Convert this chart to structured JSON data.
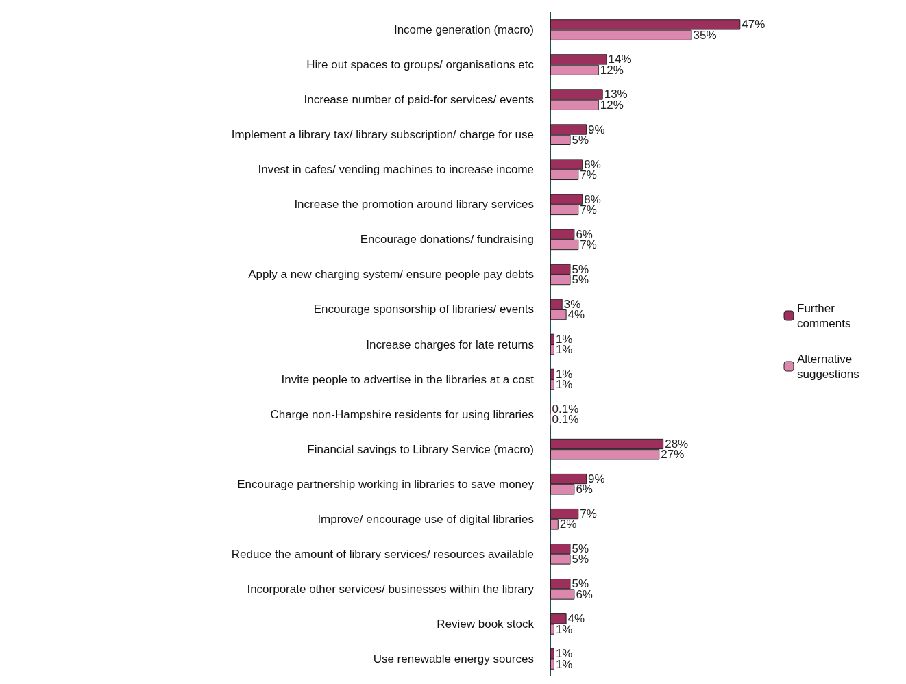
{
  "chart_data": {
    "type": "bar",
    "orientation": "horizontal",
    "legend": "right",
    "categories": [
      "Income generation (macro)",
      "Hire out spaces to groups/ organisations etc",
      "Increase number of paid-for services/ events",
      "Implement a library tax/ library subscription/ charge for use",
      "Invest in cafes/ vending machines to increase income",
      "Increase the promotion around library services",
      "Encourage donations/ fundraising",
      "Apply a new charging system/ ensure people pay debts",
      "Encourage sponsorship of libraries/ events",
      "Increase charges for late returns",
      "Invite people to advertise in the libraries at a cost",
      "Charge non-Hampshire residents for using libraries",
      "Financial savings to Library Service (macro)",
      "Encourage partnership working in libraries to save money",
      "Improve/ encourage use of digital libraries",
      "Reduce the amount of library services/ resources available",
      "Incorporate other services/ businesses within the library",
      "Review book stock",
      "Use renewable energy sources"
    ],
    "series": [
      {
        "name": "Further comments",
        "color": "#9c2f5c",
        "values": [
          47,
          14,
          13,
          9,
          8,
          8,
          6,
          5,
          3,
          1,
          1,
          0.1,
          28,
          9,
          7,
          5,
          5,
          4,
          1
        ],
        "value_labels": [
          "47%",
          "14%",
          "13%",
          "9%",
          "8%",
          "8%",
          "6%",
          "5%",
          "3%",
          "1%",
          "1%",
          "0.1%",
          "28%",
          "9%",
          "7%",
          "5%",
          "5%",
          "4%",
          "1%"
        ]
      },
      {
        "name": "Alternative suggestions",
        "color": "#dc88ae",
        "values": [
          35,
          12,
          12,
          5,
          7,
          7,
          7,
          5,
          4,
          1,
          1,
          0.1,
          27,
          6,
          2,
          5,
          6,
          1,
          1
        ],
        "value_labels": [
          "35%",
          "12%",
          "12%",
          "5%",
          "7%",
          "7%",
          "7%",
          "5%",
          "4%",
          "1%",
          "1%",
          "0.1%",
          "27%",
          "6%",
          "2%",
          "5%",
          "6%",
          "1%",
          "1%"
        ]
      }
    ]
  }
}
